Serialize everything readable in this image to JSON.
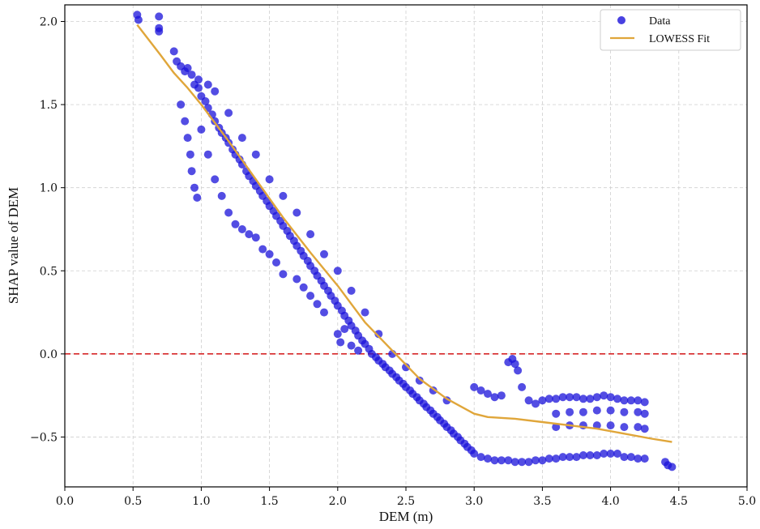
{
  "chart_data": {
    "type": "scatter",
    "title": "",
    "xlabel": "DEM (m)",
    "ylabel": "SHAP value of DEM",
    "xlim": [
      0.0,
      5.0
    ],
    "ylim": [
      -0.8,
      2.1
    ],
    "x_ticks": [
      {
        "value": 0.0,
        "label": "0.0"
      },
      {
        "value": 0.5,
        "label": "0.5"
      },
      {
        "value": 1.0,
        "label": "1.0"
      },
      {
        "value": 1.5,
        "label": "1.5"
      },
      {
        "value": 2.0,
        "label": "2.0"
      },
      {
        "value": 2.5,
        "label": "2.5"
      },
      {
        "value": 3.0,
        "label": "3.0"
      },
      {
        "value": 3.5,
        "label": "3.5"
      },
      {
        "value": 4.0,
        "label": "4.0"
      },
      {
        "value": 4.5,
        "label": "4.5"
      },
      {
        "value": 5.0,
        "label": "5.0"
      }
    ],
    "y_ticks": [
      {
        "value": -0.5,
        "label": "−0.5"
      },
      {
        "value": 0.0,
        "label": "0.0"
      },
      {
        "value": 0.5,
        "label": "0.5"
      },
      {
        "value": 1.0,
        "label": "1.0"
      },
      {
        "value": 1.5,
        "label": "1.5"
      },
      {
        "value": 2.0,
        "label": "2.0"
      }
    ],
    "grid": true,
    "legend_position": "top-right",
    "reference_line": {
      "y": 0.0,
      "color": "#d62728",
      "style": "dashed"
    },
    "series": [
      {
        "name": "Data",
        "kind": "scatter",
        "color": "#1a12d9",
        "points": [
          [
            0.53,
            2.04
          ],
          [
            0.54,
            2.01
          ],
          [
            0.69,
            2.03
          ],
          [
            0.69,
            1.96
          ],
          [
            0.69,
            1.94
          ],
          [
            0.8,
            1.82
          ],
          [
            0.82,
            1.76
          ],
          [
            0.85,
            1.73
          ],
          [
            0.88,
            1.7
          ],
          [
            0.9,
            1.72
          ],
          [
            0.93,
            1.68
          ],
          [
            0.95,
            1.62
          ],
          [
            0.98,
            1.6
          ],
          [
            1.0,
            1.55
          ],
          [
            1.03,
            1.52
          ],
          [
            1.05,
            1.48
          ],
          [
            1.08,
            1.44
          ],
          [
            1.1,
            1.4
          ],
          [
            1.13,
            1.36
          ],
          [
            1.15,
            1.33
          ],
          [
            1.18,
            1.3
          ],
          [
            1.2,
            1.27
          ],
          [
            1.23,
            1.23
          ],
          [
            1.25,
            1.2
          ],
          [
            1.28,
            1.17
          ],
          [
            1.3,
            1.14
          ],
          [
            1.33,
            1.1
          ],
          [
            1.35,
            1.07
          ],
          [
            1.38,
            1.04
          ],
          [
            1.4,
            1.01
          ],
          [
            1.43,
            0.98
          ],
          [
            1.45,
            0.95
          ],
          [
            1.48,
            0.92
          ],
          [
            1.5,
            0.89
          ],
          [
            1.53,
            0.86
          ],
          [
            1.55,
            0.83
          ],
          [
            1.58,
            0.8
          ],
          [
            1.6,
            0.77
          ],
          [
            1.63,
            0.74
          ],
          [
            1.65,
            0.71
          ],
          [
            1.68,
            0.68
          ],
          [
            1.7,
            0.65
          ],
          [
            1.73,
            0.62
          ],
          [
            1.75,
            0.59
          ],
          [
            1.78,
            0.56
          ],
          [
            1.8,
            0.53
          ],
          [
            1.83,
            0.5
          ],
          [
            1.85,
            0.47
          ],
          [
            1.88,
            0.44
          ],
          [
            1.9,
            0.41
          ],
          [
            1.93,
            0.38
          ],
          [
            1.95,
            0.35
          ],
          [
            1.98,
            0.32
          ],
          [
            2.0,
            0.29
          ],
          [
            2.03,
            0.26
          ],
          [
            2.05,
            0.23
          ],
          [
            2.08,
            0.2
          ],
          [
            2.1,
            0.17
          ],
          [
            2.13,
            0.14
          ],
          [
            2.15,
            0.11
          ],
          [
            2.18,
            0.08
          ],
          [
            2.2,
            0.06
          ],
          [
            2.23,
            0.03
          ],
          [
            2.25,
            0.0
          ],
          [
            2.28,
            -0.02
          ],
          [
            2.3,
            -0.04
          ],
          [
            2.33,
            -0.06
          ],
          [
            2.35,
            -0.08
          ],
          [
            2.38,
            -0.1
          ],
          [
            2.4,
            -0.12
          ],
          [
            2.43,
            -0.14
          ],
          [
            2.45,
            -0.16
          ],
          [
            2.48,
            -0.18
          ],
          [
            2.5,
            -0.2
          ],
          [
            2.53,
            -0.22
          ],
          [
            2.55,
            -0.24
          ],
          [
            2.58,
            -0.26
          ],
          [
            2.6,
            -0.28
          ],
          [
            2.63,
            -0.3
          ],
          [
            2.65,
            -0.32
          ],
          [
            2.68,
            -0.34
          ],
          [
            2.7,
            -0.36
          ],
          [
            2.73,
            -0.38
          ],
          [
            2.75,
            -0.4
          ],
          [
            2.78,
            -0.42
          ],
          [
            2.8,
            -0.44
          ],
          [
            2.83,
            -0.46
          ],
          [
            2.85,
            -0.48
          ],
          [
            2.88,
            -0.5
          ],
          [
            2.9,
            -0.52
          ],
          [
            2.93,
            -0.54
          ],
          [
            2.95,
            -0.56
          ],
          [
            2.98,
            -0.58
          ],
          [
            3.0,
            -0.6
          ],
          [
            3.05,
            -0.62
          ],
          [
            3.1,
            -0.63
          ],
          [
            3.15,
            -0.64
          ],
          [
            3.2,
            -0.64
          ],
          [
            3.25,
            -0.64
          ],
          [
            3.3,
            -0.65
          ],
          [
            3.35,
            -0.65
          ],
          [
            3.4,
            -0.65
          ],
          [
            3.45,
            -0.64
          ],
          [
            3.5,
            -0.64
          ],
          [
            3.55,
            -0.63
          ],
          [
            3.6,
            -0.63
          ],
          [
            3.65,
            -0.62
          ],
          [
            3.7,
            -0.62
          ],
          [
            3.75,
            -0.62
          ],
          [
            3.8,
            -0.61
          ],
          [
            3.85,
            -0.61
          ],
          [
            3.9,
            -0.61
          ],
          [
            3.95,
            -0.6
          ],
          [
            4.0,
            -0.6
          ],
          [
            4.05,
            -0.6
          ],
          [
            4.1,
            -0.62
          ],
          [
            4.15,
            -0.62
          ],
          [
            4.2,
            -0.63
          ],
          [
            4.25,
            -0.63
          ],
          [
            3.0,
            -0.2
          ],
          [
            3.05,
            -0.22
          ],
          [
            3.1,
            -0.24
          ],
          [
            3.15,
            -0.26
          ],
          [
            3.2,
            -0.25
          ],
          [
            3.25,
            -0.05
          ],
          [
            3.28,
            -0.03
          ],
          [
            3.3,
            -0.06
          ],
          [
            3.32,
            -0.1
          ],
          [
            3.35,
            -0.2
          ],
          [
            3.4,
            -0.28
          ],
          [
            3.45,
            -0.3
          ],
          [
            3.5,
            -0.28
          ],
          [
            3.55,
            -0.27
          ],
          [
            3.6,
            -0.27
          ],
          [
            3.65,
            -0.26
          ],
          [
            3.7,
            -0.26
          ],
          [
            3.75,
            -0.26
          ],
          [
            3.8,
            -0.27
          ],
          [
            3.85,
            -0.27
          ],
          [
            3.9,
            -0.26
          ],
          [
            3.95,
            -0.25
          ],
          [
            4.0,
            -0.26
          ],
          [
            4.05,
            -0.27
          ],
          [
            4.1,
            -0.28
          ],
          [
            4.15,
            -0.28
          ],
          [
            4.2,
            -0.28
          ],
          [
            4.25,
            -0.29
          ],
          [
            3.6,
            -0.36
          ],
          [
            3.7,
            -0.35
          ],
          [
            3.8,
            -0.35
          ],
          [
            3.9,
            -0.34
          ],
          [
            4.0,
            -0.34
          ],
          [
            4.1,
            -0.35
          ],
          [
            4.2,
            -0.35
          ],
          [
            4.25,
            -0.36
          ],
          [
            3.6,
            -0.44
          ],
          [
            3.7,
            -0.43
          ],
          [
            3.8,
            -0.43
          ],
          [
            3.9,
            -0.43
          ],
          [
            4.0,
            -0.43
          ],
          [
            4.1,
            -0.44
          ],
          [
            4.2,
            -0.44
          ],
          [
            4.25,
            -0.45
          ],
          [
            4.4,
            -0.65
          ],
          [
            4.42,
            -0.67
          ],
          [
            4.45,
            -0.68
          ],
          [
            0.85,
            1.5
          ],
          [
            0.88,
            1.4
          ],
          [
            0.9,
            1.3
          ],
          [
            0.92,
            1.2
          ],
          [
            0.93,
            1.1
          ],
          [
            0.95,
            1.0
          ],
          [
            0.97,
            0.94
          ],
          [
            1.0,
            1.35
          ],
          [
            1.05,
            1.2
          ],
          [
            1.1,
            1.05
          ],
          [
            1.15,
            0.95
          ],
          [
            1.2,
            0.85
          ],
          [
            1.25,
            0.78
          ],
          [
            1.3,
            0.75
          ],
          [
            1.35,
            0.72
          ],
          [
            1.4,
            0.7
          ],
          [
            1.45,
            0.63
          ],
          [
            1.5,
            0.6
          ],
          [
            1.55,
            0.55
          ],
          [
            1.6,
            0.48
          ],
          [
            1.7,
            0.45
          ],
          [
            1.75,
            0.4
          ],
          [
            1.8,
            0.35
          ],
          [
            1.85,
            0.3
          ],
          [
            1.9,
            0.25
          ],
          [
            2.0,
            0.12
          ],
          [
            2.02,
            0.07
          ],
          [
            2.05,
            0.15
          ],
          [
            2.1,
            0.05
          ],
          [
            2.15,
            0.02
          ],
          [
            0.98,
            1.65
          ],
          [
            1.05,
            1.62
          ],
          [
            1.1,
            1.58
          ],
          [
            1.2,
            1.45
          ],
          [
            1.3,
            1.3
          ],
          [
            1.4,
            1.2
          ],
          [
            1.5,
            1.05
          ],
          [
            1.6,
            0.95
          ],
          [
            1.7,
            0.85
          ],
          [
            1.8,
            0.72
          ],
          [
            1.9,
            0.6
          ],
          [
            2.0,
            0.5
          ],
          [
            2.1,
            0.38
          ],
          [
            2.2,
            0.25
          ],
          [
            2.3,
            0.12
          ],
          [
            2.4,
            0.0
          ],
          [
            2.5,
            -0.08
          ],
          [
            2.6,
            -0.16
          ],
          [
            2.7,
            -0.22
          ],
          [
            2.8,
            -0.28
          ]
        ]
      },
      {
        "name": "LOWESS Fit",
        "kind": "line",
        "color": "#e0a63a",
        "points": [
          [
            0.53,
            1.98
          ],
          [
            0.7,
            1.8
          ],
          [
            0.8,
            1.69
          ],
          [
            0.9,
            1.6
          ],
          [
            1.0,
            1.5
          ],
          [
            1.2,
            1.28
          ],
          [
            1.4,
            1.05
          ],
          [
            1.6,
            0.82
          ],
          [
            1.8,
            0.61
          ],
          [
            2.0,
            0.41
          ],
          [
            2.2,
            0.19
          ],
          [
            2.4,
            0.02
          ],
          [
            2.6,
            -0.15
          ],
          [
            2.8,
            -0.27
          ],
          [
            3.0,
            -0.36
          ],
          [
            3.1,
            -0.38
          ],
          [
            3.3,
            -0.39
          ],
          [
            3.5,
            -0.41
          ],
          [
            3.7,
            -0.43
          ],
          [
            3.9,
            -0.45
          ],
          [
            4.1,
            -0.48
          ],
          [
            4.3,
            -0.51
          ],
          [
            4.45,
            -0.53
          ]
        ]
      }
    ]
  },
  "legend": {
    "items": [
      {
        "label": "Data",
        "marker": "dot",
        "color": "#1a12d9"
      },
      {
        "label": "LOWESS Fit",
        "marker": "line",
        "color": "#e0a63a"
      }
    ]
  }
}
